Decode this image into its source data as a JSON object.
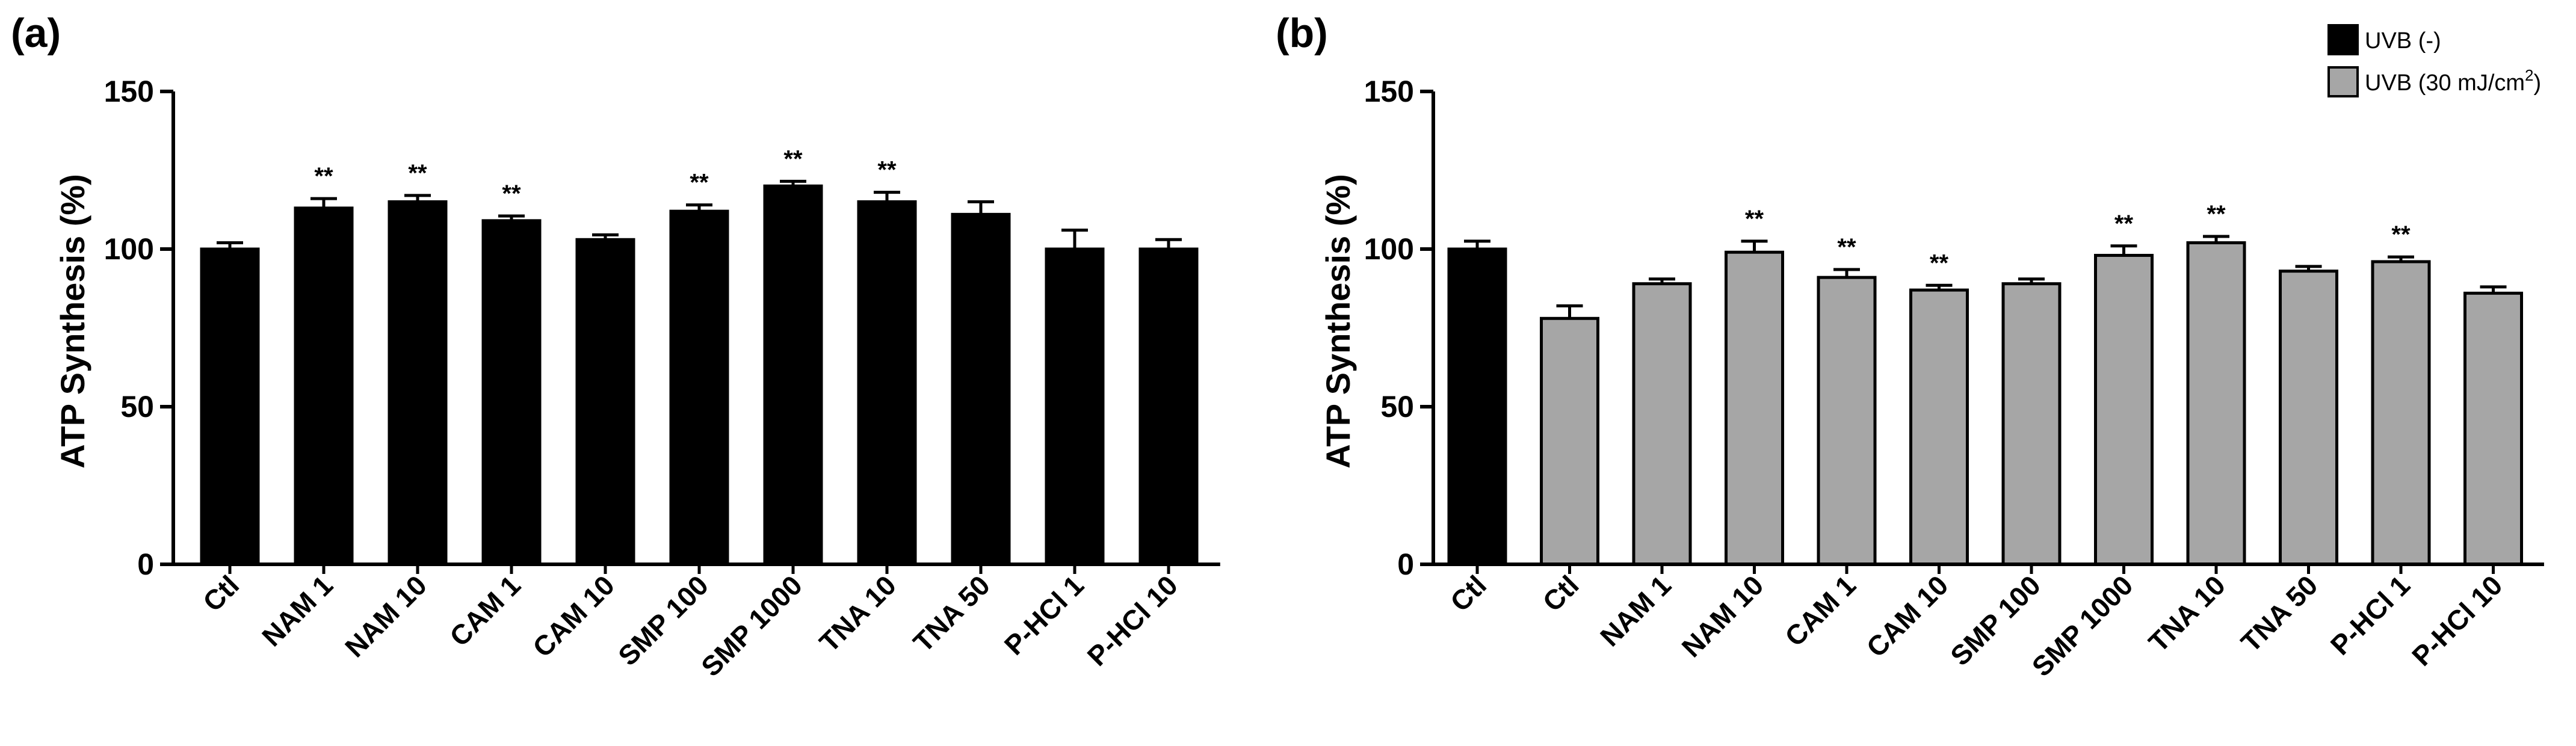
{
  "chart_data": [
    {
      "type": "bar",
      "panel": "(a)",
      "ylabel": "ATP Synthesis (%)",
      "ylim": [
        0,
        150
      ],
      "yticks": [
        "0",
        "50",
        "100",
        "150"
      ],
      "categories": [
        "Ctl",
        "NAM 1",
        "NAM 10",
        "CAM 1",
        "CAM 10",
        "SMP 100",
        "SMP 1000",
        "TNA 10",
        "TNA 50",
        "P-HCl 1",
        "P-HCl 10"
      ],
      "values": [
        100,
        113,
        115,
        109,
        103,
        112,
        120,
        115,
        111,
        100,
        100
      ],
      "errors": [
        2,
        3,
        2,
        1.5,
        1.5,
        2,
        1.5,
        3,
        4,
        6,
        3
      ],
      "significance": [
        "",
        "**",
        "**",
        "**",
        "",
        "**",
        "**",
        "**",
        "",
        "",
        ""
      ],
      "bar_colors": [
        "#000000",
        "#000000",
        "#000000",
        "#000000",
        "#000000",
        "#000000",
        "#000000",
        "#000000",
        "#000000",
        "#000000",
        "#000000"
      ]
    },
    {
      "type": "bar",
      "panel": "(b)",
      "ylabel": "ATP Synthesis (%)",
      "ylim": [
        0,
        150
      ],
      "yticks": [
        "0",
        "50",
        "100",
        "150"
      ],
      "categories": [
        "Ctl",
        "Ctl",
        "NAM 1",
        "NAM 10",
        "CAM 1",
        "CAM 10",
        "SMP 100",
        "SMP 1000",
        "TNA 10",
        "TNA 50",
        "P-HCl 1",
        "P-HCl 10"
      ],
      "values": [
        100,
        78,
        89,
        99,
        91,
        87,
        89,
        98,
        102,
        93,
        96,
        86
      ],
      "errors": [
        2.5,
        4,
        1.5,
        3.5,
        2.5,
        1.5,
        1.5,
        3,
        2,
        1.5,
        1.5,
        2
      ],
      "significance": [
        "",
        "",
        "",
        "**",
        "**",
        "**",
        "",
        "**",
        "**",
        "",
        "**",
        ""
      ],
      "bar_colors": [
        "#000000",
        "#a6a6a6",
        "#a6a6a6",
        "#a6a6a6",
        "#a6a6a6",
        "#a6a6a6",
        "#a6a6a6",
        "#a6a6a6",
        "#a6a6a6",
        "#a6a6a6",
        "#a6a6a6",
        "#a6a6a6"
      ],
      "legend": [
        {
          "label": "UVB (-)",
          "color": "#000000"
        },
        {
          "label": "UVB (30 mJ/cm",
          "sup": "2",
          "tail": ")",
          "color": "#a6a6a6"
        }
      ]
    }
  ]
}
